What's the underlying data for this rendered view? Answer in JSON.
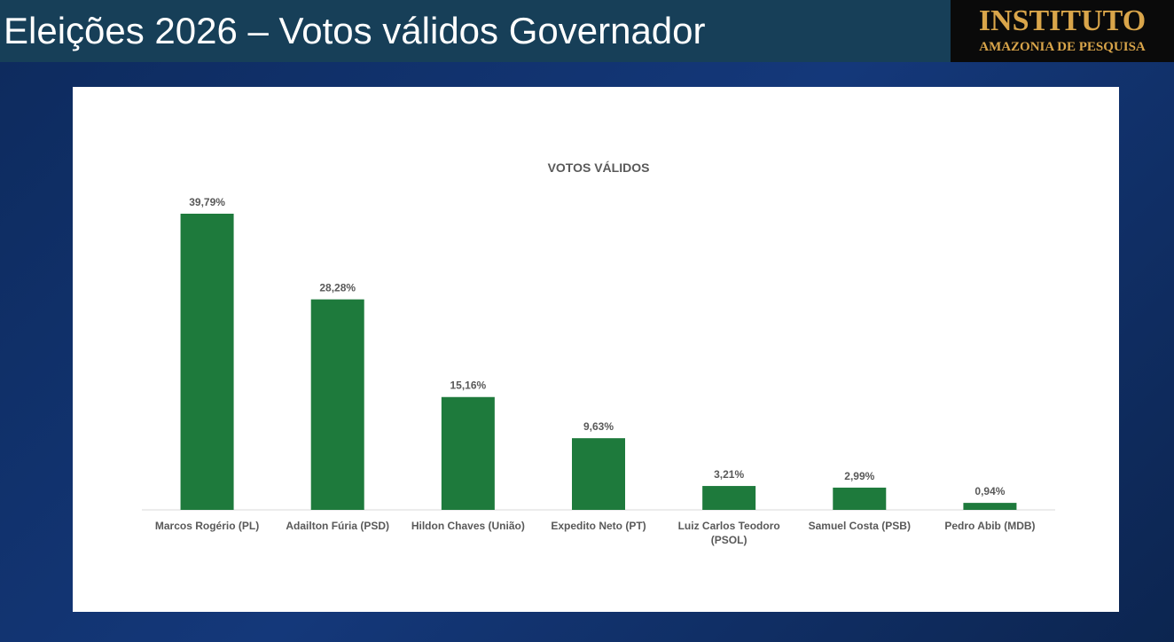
{
  "header": {
    "title": "Eleições 2026 – Votos válidos Governador",
    "logo_line1": "INSTITUTO",
    "logo_line2": "AMAZONIA DE PESQUISA"
  },
  "chart_data": {
    "type": "bar",
    "title": "VOTOS VÁLIDOS",
    "categories": [
      "Marcos Rogério (PL)",
      "Adailton Fúria (PSD)",
      "Hildon Chaves (União)",
      "Expedito Neto (PT)",
      "Luiz Carlos Teodoro (PSOL)",
      "Samuel Costa (PSB)",
      "Pedro Abib (MDB)"
    ],
    "values": [
      39.79,
      28.28,
      15.16,
      9.63,
      3.21,
      2.99,
      0.94
    ],
    "value_labels": [
      "39,79%",
      "28,28%",
      "15,16%",
      "9,63%",
      "3,21%",
      "2,99%",
      "0,94%"
    ],
    "color": "#1e7a3c"
  }
}
